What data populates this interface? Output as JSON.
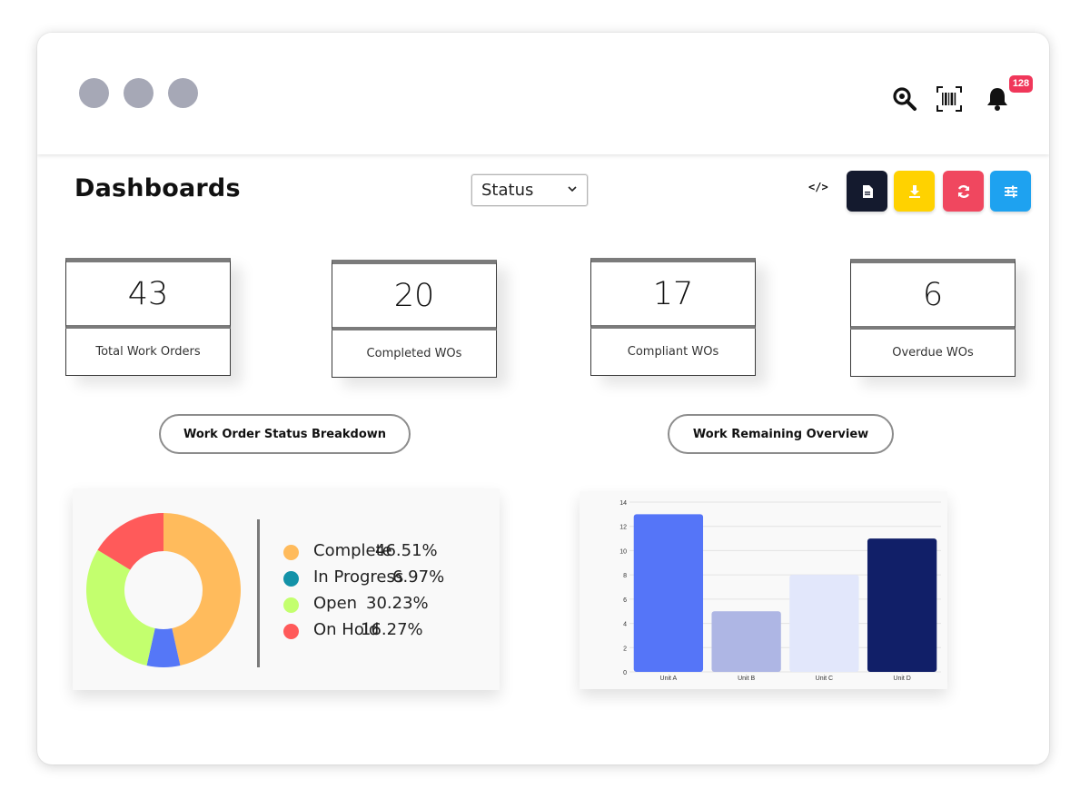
{
  "notifications": {
    "count": "128"
  },
  "header": {
    "title": "Dashboards"
  },
  "filter": {
    "selected": "Status"
  },
  "toolbar": {
    "colors": {
      "dark": "#141a2e",
      "yellow": "#ffd200",
      "red": "#f0475f",
      "blue": "#1ea2f0"
    }
  },
  "kpis": [
    {
      "value": "43",
      "label": "Total Work Orders"
    },
    {
      "value": "20",
      "label": "Completed WOs"
    },
    {
      "value": "17",
      "label": "Compliant WOs"
    },
    {
      "value": "6",
      "label": "Overdue WOs"
    }
  ],
  "sections": {
    "status_breakdown": "Work Order Status Breakdown",
    "remaining_overview": "Work Remaining Overview"
  },
  "chart_data": [
    {
      "type": "pie",
      "donut": true,
      "categories": [
        "Complete",
        "In Progress",
        "Open",
        "On Hold"
      ],
      "labels": [
        "46.51%",
        "6.97%",
        "30.23%",
        "16.27%"
      ],
      "values": [
        46.51,
        6.97,
        30.23,
        16.27
      ],
      "colors": [
        "#ffbb5c",
        "#1392a8",
        "#c3ff6e",
        "#ff5a5a"
      ],
      "slice_colors": [
        "#ffbb5c",
        "#5577f7",
        "#c3ff6e",
        "#ff5a5a"
      ],
      "legend": "right"
    },
    {
      "type": "bar",
      "categories": [
        "Unit A",
        "Unit B",
        "Unit C",
        "Unit D"
      ],
      "values": [
        13,
        5,
        8,
        11
      ],
      "colors": [
        "#5575f8",
        "#aeb6e4",
        "#e2e7fb",
        "#111f68"
      ],
      "ylim": [
        0,
        14
      ],
      "yticks": [
        "0",
        "2",
        "4",
        "6",
        "8",
        "10",
        "12",
        "14"
      ],
      "grid": true
    }
  ]
}
